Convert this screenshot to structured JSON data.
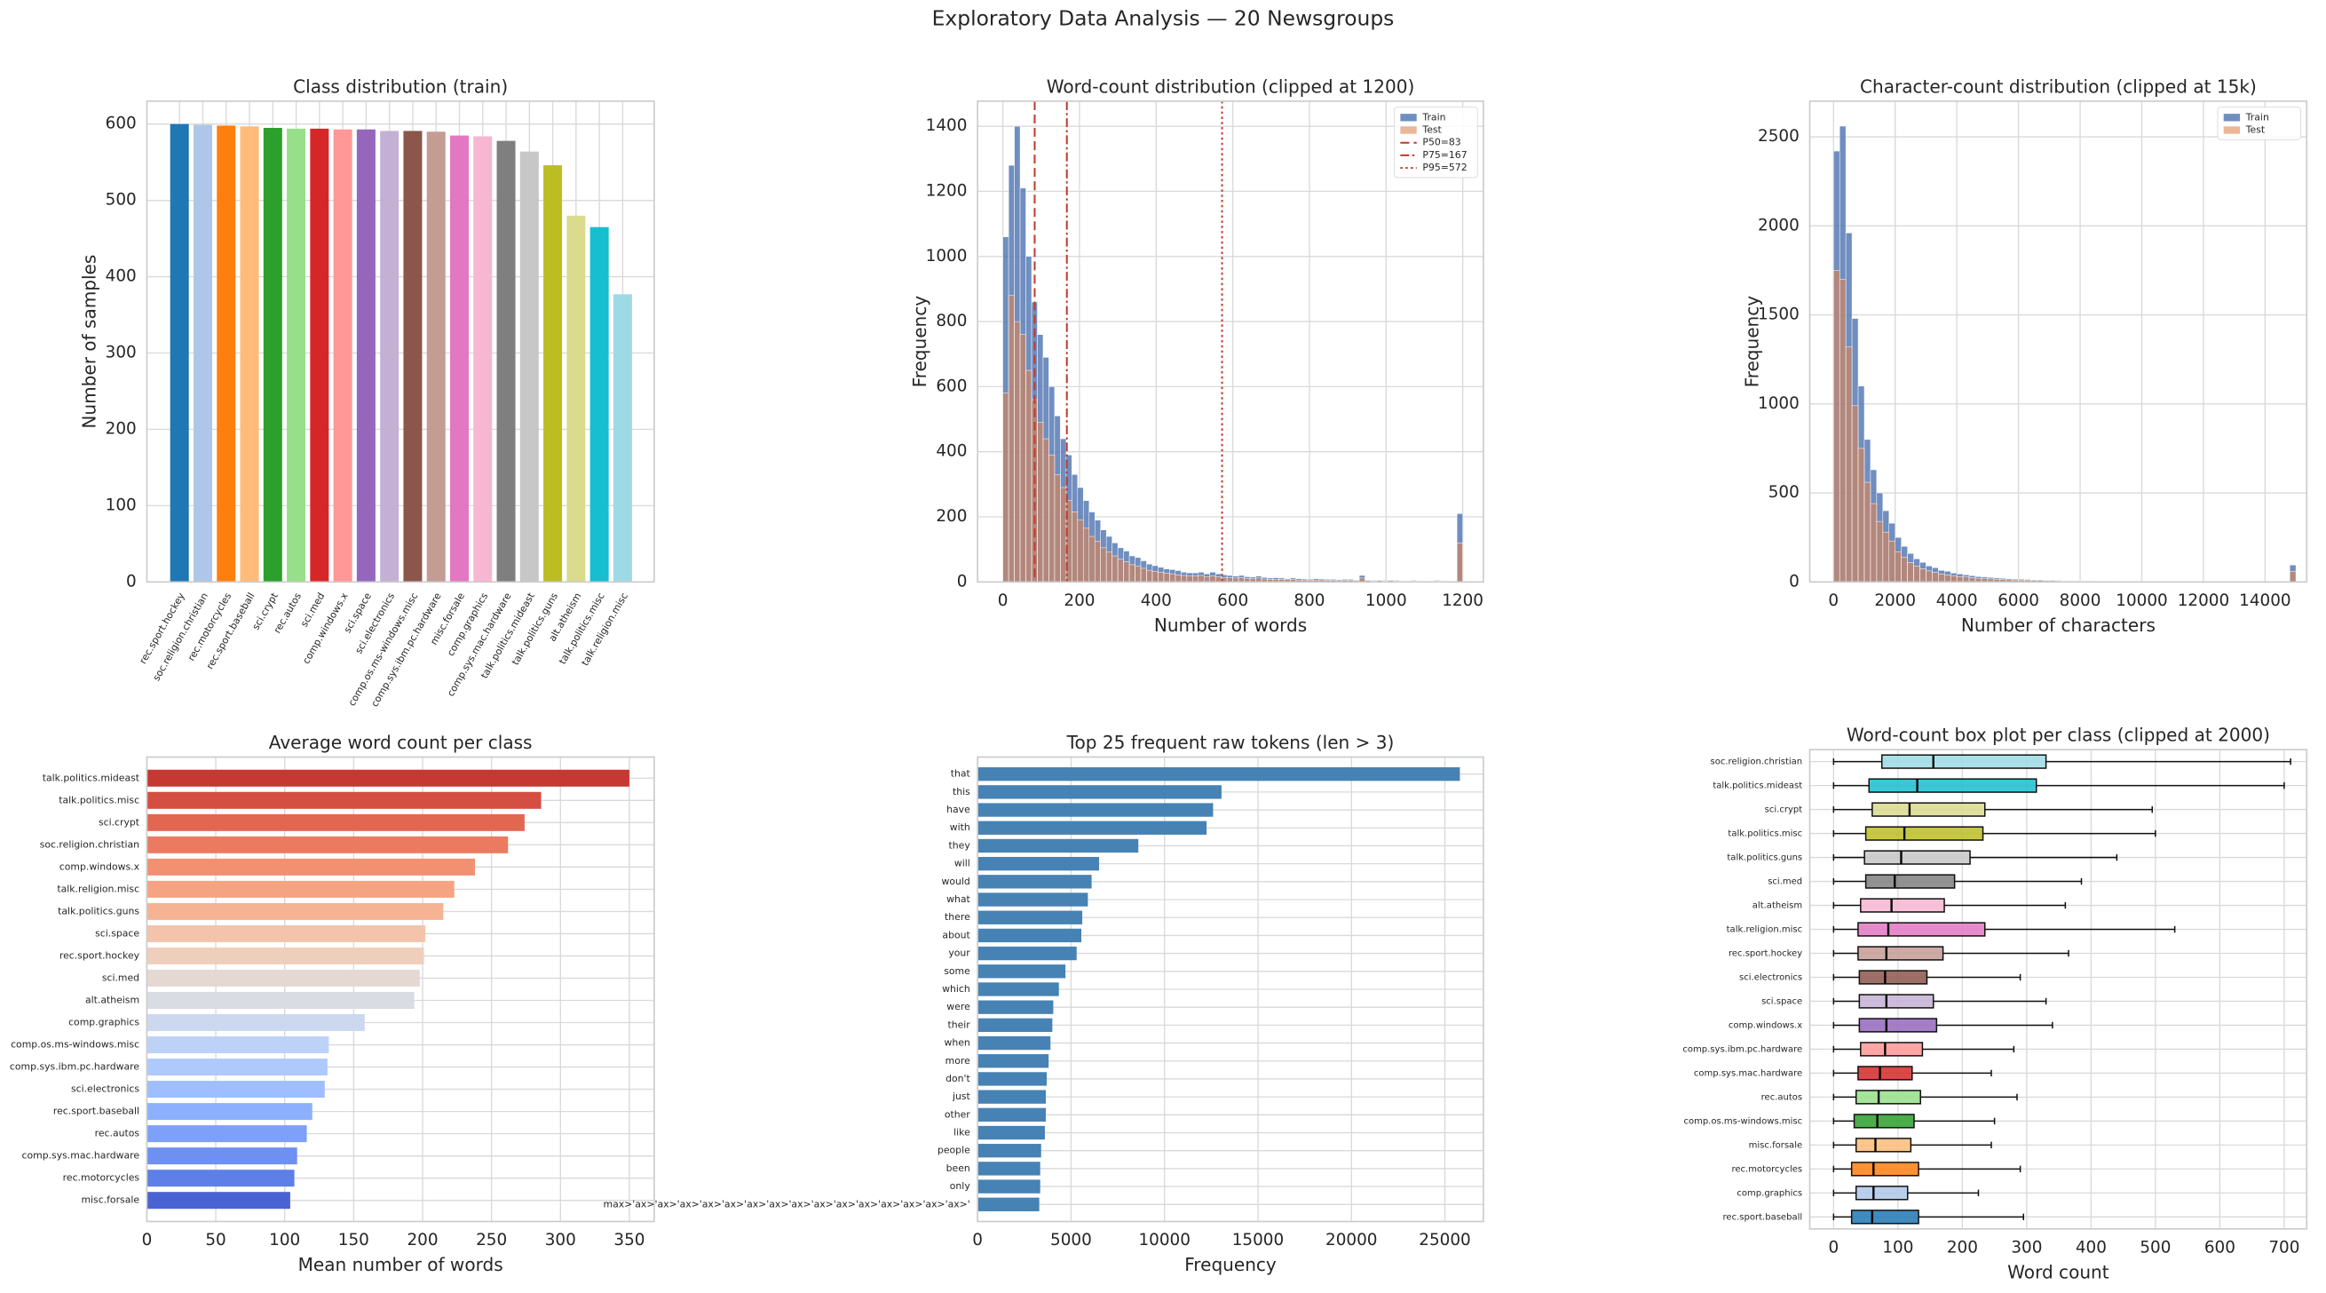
{
  "title": "Exploratory Data Analysis — 20 Newsgroups",
  "chart_data": [
    {
      "type": "bar",
      "title": "Class distribution (train)",
      "ylabel": "Number of samples",
      "categories": [
        "rec.sport.hockey",
        "soc.religion.christian",
        "rec.motorcycles",
        "rec.sport.baseball",
        "sci.crypt",
        "rec.autos",
        "sci.med",
        "comp.windows.x",
        "sci.space",
        "sci.electronics",
        "comp.os.ms-windows.misc",
        "comp.sys.ibm.pc.hardware",
        "misc.forsale",
        "comp.graphics",
        "comp.sys.mac.hardware",
        "talk.politics.mideast",
        "talk.politics.guns",
        "alt.atheism",
        "talk.politics.misc",
        "talk.religion.misc"
      ],
      "values": [
        600,
        599,
        598,
        597,
        595,
        594,
        594,
        593,
        593,
        591,
        591,
        590,
        585,
        584,
        578,
        564,
        546,
        480,
        465,
        377
      ],
      "colors": [
        "#1f77b4",
        "#aec7e8",
        "#ff7f0e",
        "#ffbb78",
        "#2ca02c",
        "#98df8a",
        "#d62728",
        "#ff9896",
        "#9467bd",
        "#c5b0d5",
        "#8c564b",
        "#c49c94",
        "#e377c2",
        "#f7b6d2",
        "#7f7f7f",
        "#c7c7c7",
        "#bcbd22",
        "#dbdb8d",
        "#17becf",
        "#9edae5"
      ],
      "ylim": [
        0,
        630
      ],
      "yticks": [
        0,
        100,
        200,
        300,
        400,
        500,
        600
      ],
      "grid": true
    },
    {
      "type": "histogram",
      "title": "Word-count distribution (clipped at 1200)",
      "xlabel": "Number of words",
      "ylabel": "Frequency",
      "bins": [
        0,
        15,
        30,
        45,
        60,
        75,
        90,
        105,
        120,
        135,
        150,
        165,
        180,
        195,
        210,
        225,
        240,
        255,
        270,
        285,
        300,
        315,
        330,
        345,
        360,
        375,
        390,
        405,
        420,
        435,
        450,
        465,
        480,
        495,
        510,
        525,
        540,
        555,
        570,
        585,
        600,
        615,
        630,
        645,
        660,
        675,
        690,
        705,
        720,
        735,
        750,
        765,
        780,
        795,
        810,
        825,
        840,
        855,
        870,
        885,
        900,
        915,
        930,
        945,
        960,
        975,
        990,
        1005,
        1020,
        1035,
        1050,
        1065,
        1080,
        1095,
        1110,
        1125,
        1140,
        1155,
        1170,
        1185,
        1200
      ],
      "series": [
        {
          "name": "Train",
          "color": "#4c72b0",
          "values": [
            1060,
            1280,
            1400,
            1210,
            1000,
            860,
            760,
            690,
            600,
            510,
            440,
            390,
            330,
            290,
            250,
            215,
            190,
            160,
            140,
            120,
            105,
            95,
            80,
            75,
            65,
            55,
            50,
            45,
            40,
            38,
            35,
            30,
            28,
            28,
            30,
            25,
            30,
            25,
            22,
            20,
            18,
            20,
            16,
            15,
            18,
            14,
            12,
            13,
            12,
            10,
            12,
            10,
            9,
            8,
            10,
            9,
            8,
            8,
            7,
            8,
            8,
            6,
            20,
            6,
            5,
            6,
            5,
            6,
            5,
            4,
            4,
            5,
            4,
            4,
            3,
            5,
            4,
            4,
            3,
            210
          ]
        },
        {
          "name": "Test",
          "color": "#dd8452",
          "values": [
            580,
            880,
            800,
            760,
            650,
            560,
            490,
            440,
            390,
            330,
            290,
            250,
            215,
            190,
            165,
            140,
            125,
            105,
            92,
            80,
            70,
            62,
            53,
            48,
            42,
            36,
            33,
            30,
            27,
            25,
            22,
            20,
            18,
            18,
            20,
            16,
            19,
            16,
            14,
            13,
            12,
            13,
            10,
            10,
            12,
            9,
            8,
            8,
            8,
            7,
            8,
            6,
            6,
            5,
            6,
            6,
            5,
            5,
            4,
            5,
            5,
            4,
            12,
            4,
            3,
            4,
            3,
            4,
            3,
            3,
            3,
            3,
            3,
            3,
            2,
            3,
            3,
            3,
            2,
            120
          ]
        }
      ],
      "vlines": [
        {
          "name": "P50=83",
          "value": 83,
          "color": "#c0392b",
          "linestyle": "--"
        },
        {
          "name": "P75=167",
          "value": 167,
          "color": "#c0392b",
          "linestyle": "-."
        },
        {
          "name": "P95=572",
          "value": 572,
          "color": "#c0392b",
          "linestyle": ":"
        }
      ],
      "xlim": [
        -66,
        1254
      ],
      "ylim": [
        0,
        1477
      ],
      "xticks": [
        0,
        200,
        400,
        600,
        800,
        1000,
        1200
      ],
      "yticks": [
        0,
        200,
        400,
        600,
        800,
        1000,
        1200,
        1400
      ],
      "legend": "upper right",
      "grid": true
    },
    {
      "type": "histogram",
      "title": "Character-count distribution (clipped at 15k)",
      "xlabel": "Number of characters",
      "ylabel": "Frequency",
      "bins": [
        0,
        200,
        400,
        600,
        800,
        1000,
        1200,
        1400,
        1600,
        1800,
        2000,
        2200,
        2400,
        2600,
        2800,
        3000,
        3200,
        3400,
        3600,
        3800,
        4000,
        4200,
        4400,
        4600,
        4800,
        5000,
        5200,
        5400,
        5600,
        5800,
        6000,
        6200,
        6400,
        6600,
        6800,
        7000,
        7200,
        7400,
        7600,
        7800,
        8000,
        8200,
        8400,
        8600,
        8800,
        9000,
        9200,
        9400,
        9600,
        9800,
        10000,
        10200,
        10400,
        10600,
        10800,
        11000,
        11200,
        11400,
        11600,
        11800,
        12000,
        12200,
        12400,
        12600,
        12800,
        13000,
        13200,
        13400,
        13600,
        13800,
        14000,
        14200,
        14400,
        14600,
        14800,
        15000
      ],
      "series": [
        {
          "name": "Train",
          "color": "#4c72b0",
          "values": [
            2420,
            2560,
            1960,
            1480,
            1100,
            800,
            630,
            500,
            400,
            330,
            250,
            200,
            160,
            130,
            110,
            90,
            80,
            65,
            60,
            50,
            45,
            40,
            35,
            30,
            28,
            25,
            22,
            20,
            18,
            16,
            15,
            14,
            12,
            12,
            10,
            10,
            9,
            8,
            8,
            7,
            7,
            6,
            6,
            5,
            5,
            5,
            4,
            4,
            4,
            4,
            3,
            3,
            3,
            3,
            3,
            3,
            2,
            2,
            2,
            2,
            2,
            2,
            2,
            2,
            2,
            2,
            2,
            2,
            1,
            1,
            1,
            1,
            1,
            1,
            95
          ]
        },
        {
          "name": "Test",
          "color": "#dd8452",
          "values": [
            1750,
            1700,
            1320,
            990,
            750,
            560,
            440,
            340,
            280,
            230,
            170,
            140,
            110,
            90,
            75,
            62,
            55,
            45,
            40,
            35,
            30,
            28,
            24,
            21,
            19,
            17,
            15,
            14,
            12,
            11,
            10,
            9,
            8,
            8,
            7,
            7,
            6,
            5,
            5,
            5,
            5,
            4,
            4,
            3,
            3,
            3,
            3,
            3,
            3,
            3,
            2,
            2,
            2,
            2,
            2,
            2,
            1,
            1,
            1,
            1,
            1,
            1,
            1,
            1,
            1,
            1,
            1,
            1,
            1,
            1,
            1,
            1,
            1,
            1,
            60
          ]
        }
      ],
      "xlim": [
        -770,
        15350
      ],
      "ylim": [
        0,
        2700
      ],
      "xticks": [
        0,
        2000,
        4000,
        6000,
        8000,
        10000,
        12000,
        14000
      ],
      "yticks": [
        0,
        500,
        1000,
        1500,
        2000,
        2500
      ],
      "legend": "upper right",
      "grid": true
    },
    {
      "type": "barh",
      "title": "Average word count per class",
      "xlabel": "Mean number of words",
      "categories": [
        "talk.politics.mideast",
        "talk.politics.misc",
        "sci.crypt",
        "soc.religion.christian",
        "comp.windows.x",
        "talk.religion.misc",
        "talk.politics.guns",
        "sci.space",
        "rec.sport.hockey",
        "sci.med",
        "alt.atheism",
        "comp.graphics",
        "comp.os.ms-windows.misc",
        "comp.sys.ibm.pc.hardware",
        "sci.electronics",
        "rec.sport.baseball",
        "rec.autos",
        "comp.sys.mac.hardware",
        "rec.motorcycles",
        "misc.forsale"
      ],
      "values": [
        350,
        286,
        274,
        262,
        238,
        223,
        215,
        202,
        201,
        198,
        194,
        158,
        132,
        131,
        129,
        120,
        116,
        109,
        107,
        104
      ],
      "colors": [
        "#c83832",
        "#d44e41",
        "#e16751",
        "#ea7b60",
        "#f29072",
        "#f5a383",
        "#f6b394",
        "#f4c3ab",
        "#eecfbc",
        "#e4d9d2",
        "#d9dce2",
        "#cbd8ee",
        "#bcd2f7",
        "#aec9fc",
        "#9ebeff",
        "#8db0fe",
        "#7da0f9",
        "#6e90f2",
        "#5f7fe8",
        "#4a63d3"
      ],
      "xlim": [
        0,
        368
      ],
      "xticks": [
        0,
        50,
        100,
        150,
        200,
        250,
        300,
        350
      ],
      "grid": true
    },
    {
      "type": "barh",
      "title": "Top 25 frequent raw tokens (len > 3)",
      "xlabel": "Frequency",
      "categories": [
        "that",
        "this",
        "have",
        "with",
        "they",
        "will",
        "would",
        "what",
        "there",
        "about",
        "your",
        "some",
        "which",
        "were",
        "their",
        "when",
        "more",
        "don't",
        "just",
        "other",
        "like",
        "people",
        "been",
        "only",
        "max>'ax>'ax>'ax>'ax>'ax>'ax>'ax>'ax>'ax>'ax>'ax>'ax>'ax>'ax>'ax>'"
      ],
      "values": [
        25800,
        13050,
        12600,
        12250,
        8600,
        6500,
        6100,
        5900,
        5600,
        5550,
        5300,
        4700,
        4350,
        4050,
        4000,
        3900,
        3800,
        3700,
        3650,
        3650,
        3600,
        3400,
        3350,
        3350,
        3300
      ],
      "color": "#4682b4",
      "xlim": [
        0,
        27060
      ],
      "xticks": [
        0,
        5000,
        10000,
        15000,
        20000,
        25000
      ],
      "grid": true
    },
    {
      "type": "boxplot",
      "title": "Word-count box plot per class (clipped at 2000)",
      "xlabel": "Word count",
      "categories": [
        "soc.religion.christian",
        "talk.politics.mideast",
        "sci.crypt",
        "talk.politics.misc",
        "talk.politics.guns",
        "sci.med",
        "alt.atheism",
        "talk.religion.misc",
        "rec.sport.hockey",
        "sci.electronics",
        "sci.space",
        "comp.windows.x",
        "comp.sys.ibm.pc.hardware",
        "comp.sys.mac.hardware",
        "rec.autos",
        "comp.os.ms-windows.misc",
        "misc.forsale",
        "rec.motorcycles",
        "comp.graphics",
        "rec.sport.baseball"
      ],
      "boxes": [
        {
          "whislo": 0,
          "q1": 75,
          "median": 155,
          "q3": 330,
          "whishi": 710
        },
        {
          "whislo": 0,
          "q1": 55,
          "median": 130,
          "q3": 315,
          "whishi": 700
        },
        {
          "whislo": 0,
          "q1": 60,
          "median": 118,
          "q3": 235,
          "whishi": 495
        },
        {
          "whislo": 0,
          "q1": 50,
          "median": 110,
          "q3": 232,
          "whishi": 500
        },
        {
          "whislo": 0,
          "q1": 48,
          "median": 105,
          "q3": 212,
          "whishi": 440
        },
        {
          "whislo": 0,
          "q1": 50,
          "median": 95,
          "q3": 188,
          "whishi": 385
        },
        {
          "whislo": 0,
          "q1": 42,
          "median": 90,
          "q3": 172,
          "whishi": 360
        },
        {
          "whislo": 0,
          "q1": 38,
          "median": 85,
          "q3": 235,
          "whishi": 530
        },
        {
          "whislo": 0,
          "q1": 38,
          "median": 82,
          "q3": 170,
          "whishi": 365
        },
        {
          "whislo": 0,
          "q1": 40,
          "median": 80,
          "q3": 145,
          "whishi": 290
        },
        {
          "whislo": 0,
          "q1": 40,
          "median": 82,
          "q3": 155,
          "whishi": 330
        },
        {
          "whislo": 0,
          "q1": 40,
          "median": 82,
          "q3": 160,
          "whishi": 340
        },
        {
          "whislo": 0,
          "q1": 42,
          "median": 80,
          "q3": 138,
          "whishi": 280
        },
        {
          "whislo": 0,
          "q1": 38,
          "median": 72,
          "q3": 122,
          "whishi": 245
        },
        {
          "whislo": 0,
          "q1": 35,
          "median": 70,
          "q3": 135,
          "whishi": 285
        },
        {
          "whislo": 0,
          "q1": 32,
          "median": 68,
          "q3": 125,
          "whishi": 250
        },
        {
          "whislo": 0,
          "q1": 35,
          "median": 65,
          "q3": 120,
          "whishi": 245
        },
        {
          "whislo": 0,
          "q1": 28,
          "median": 62,
          "q3": 132,
          "whishi": 290
        },
        {
          "whislo": 0,
          "q1": 35,
          "median": 62,
          "q3": 115,
          "whishi": 225
        },
        {
          "whislo": 0,
          "q1": 28,
          "median": 60,
          "q3": 132,
          "whishi": 295
        }
      ],
      "colors": [
        "#9edae5",
        "#17becf",
        "#dbdb8d",
        "#bcbd22",
        "#c7c7c7",
        "#7f7f7f",
        "#f7b6d2",
        "#e377c2",
        "#c49c94",
        "#8c564b",
        "#c5b0d5",
        "#9467bd",
        "#ff9896",
        "#d62728",
        "#98df8a",
        "#2ca02c",
        "#ffbb78",
        "#ff7f0e",
        "#aec7e8",
        "#1f77b4"
      ],
      "xlim": [
        -37,
        735
      ],
      "xticks": [
        0,
        100,
        200,
        300,
        400,
        500,
        600,
        700
      ],
      "grid": true
    }
  ]
}
